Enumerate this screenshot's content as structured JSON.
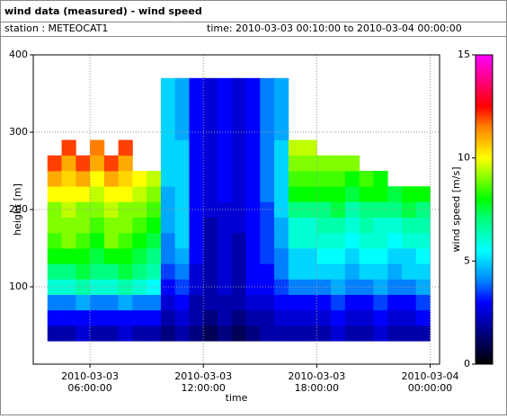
{
  "chart_data": {
    "type": "heatmap",
    "title": "wind data (measured) - wind speed",
    "station": "station : METEOCAT1",
    "period": "time: 2010-03-03 00:10:00 to 2010-03-04 00:00:00",
    "xlabel": "time",
    "ylabel": "height [m]",
    "colorbar_label": "wind speed [m/s]",
    "xlim": [
      "2010-03-03T03:00:00",
      "2010-03-04T00:30:00"
    ],
    "xticks": [
      {
        "value": "2010-03-03T06:00:00",
        "label": [
          "2010-03-03",
          "06:00:00"
        ]
      },
      {
        "value": "2010-03-03T12:00:00",
        "label": [
          "2010-03-03",
          "12:00:00"
        ]
      },
      {
        "value": "2010-03-03T18:00:00",
        "label": [
          "2010-03-03",
          "18:00:00"
        ]
      },
      {
        "value": "2010-03-04T00:00:00",
        "label": [
          "2010-03-04",
          "00:00:00"
        ]
      }
    ],
    "ylim": [
      0,
      400
    ],
    "yticks": [
      100,
      200,
      300,
      400
    ],
    "clim": [
      0,
      15
    ],
    "cticks": [
      0,
      5,
      10,
      15
    ],
    "grid": true,
    "colorscale": [
      [
        0,
        "#000000"
      ],
      [
        1.5,
        "#00007f"
      ],
      [
        3,
        "#0000ff"
      ],
      [
        4,
        "#0080ff"
      ],
      [
        5.5,
        "#00ffff"
      ],
      [
        7,
        "#00ff80"
      ],
      [
        8,
        "#00ff00"
      ],
      [
        10,
        "#ffff00"
      ],
      [
        11.5,
        "#ff8000"
      ],
      [
        12.5,
        "#ff0000"
      ],
      [
        15,
        "#ff00ff"
      ]
    ],
    "x": [
      "2010-03-03T03:45:00",
      "2010-03-03T04:30:00",
      "2010-03-03T05:15:00",
      "2010-03-03T06:00:00",
      "2010-03-03T06:45:00",
      "2010-03-03T07:30:00",
      "2010-03-03T08:15:00",
      "2010-03-03T09:00:00",
      "2010-03-03T09:45:00",
      "2010-03-03T10:30:00",
      "2010-03-03T11:15:00",
      "2010-03-03T12:00:00",
      "2010-03-03T12:45:00",
      "2010-03-03T13:30:00",
      "2010-03-03T14:15:00",
      "2010-03-03T15:00:00",
      "2010-03-03T15:45:00",
      "2010-03-03T16:30:00",
      "2010-03-03T17:15:00",
      "2010-03-03T18:00:00",
      "2010-03-03T18:45:00",
      "2010-03-03T19:30:00",
      "2010-03-03T20:15:00",
      "2010-03-03T21:00:00",
      "2010-03-03T21:45:00",
      "2010-03-03T22:30:00",
      "2010-03-03T23:15:00"
    ],
    "y": [
      40,
      60,
      80,
      100,
      120,
      140,
      160,
      180,
      200,
      220,
      240,
      260,
      280,
      300,
      320,
      340,
      360
    ],
    "z": [
      [
        2,
        2,
        2.5,
        2,
        2,
        2.5,
        2,
        2,
        1.5,
        2,
        1.5,
        1,
        1.5,
        1,
        1.5,
        2,
        2,
        2,
        2,
        2,
        2.5,
        2,
        2,
        2.5,
        2,
        2,
        2
      ],
      [
        3,
        3,
        3,
        3,
        3,
        3,
        3,
        3,
        2,
        2.5,
        2,
        1.5,
        2,
        1.5,
        2,
        2,
        2.5,
        2.5,
        2.5,
        2.5,
        3,
        2.5,
        2.5,
        3,
        2.5,
        2.5,
        3
      ],
      [
        4,
        4,
        4.5,
        4,
        4,
        4.5,
        4,
        4,
        2.5,
        3,
        2,
        2,
        2,
        2,
        2.5,
        2.5,
        3,
        3,
        3,
        3,
        3.5,
        3,
        3,
        3.5,
        3,
        3,
        3.5
      ],
      [
        6,
        6,
        6.5,
        6,
        6,
        6.5,
        6,
        5.5,
        3,
        3.5,
        2.5,
        2,
        2.5,
        2,
        3,
        3,
        3.5,
        4,
        4,
        4,
        4.5,
        4,
        4,
        4.5,
        4,
        4,
        4.5
      ],
      [
        7,
        7,
        7.5,
        7,
        7,
        7.5,
        7,
        6.5,
        3.5,
        4,
        2.5,
        2,
        2.5,
        2,
        3,
        3,
        4,
        5,
        5,
        5,
        5,
        4.5,
        5,
        5,
        4.5,
        5,
        5
      ],
      [
        8,
        8,
        8,
        7.5,
        8,
        8,
        7.5,
        7,
        4,
        4.5,
        3,
        2,
        2.5,
        2,
        3,
        3.5,
        4,
        5,
        5,
        5.5,
        5.5,
        5,
        5.5,
        5.5,
        5,
        5,
        5.5
      ],
      [
        8.5,
        9,
        8.5,
        8,
        9,
        8.5,
        8,
        7.5,
        4,
        5,
        3,
        2,
        2.5,
        2,
        3,
        3.5,
        4.5,
        6,
        6,
        6,
        6,
        5.5,
        6,
        6,
        5.5,
        6,
        6
      ],
      [
        9,
        9,
        9,
        8.5,
        9,
        9,
        8.5,
        8,
        4.5,
        5,
        3,
        2,
        2.5,
        2.5,
        3,
        3.5,
        4.5,
        6,
        6,
        6.5,
        6.5,
        6,
        6.5,
        6,
        6,
        6.5,
        6.5
      ],
      [
        9,
        9.5,
        9,
        9,
        9.5,
        9,
        9,
        8.5,
        4.5,
        5,
        3,
        2.5,
        2.5,
        2.5,
        3,
        3.5,
        5,
        7,
        7,
        7,
        7.5,
        6.5,
        7,
        7,
        7,
        7.5,
        7
      ],
      [
        10,
        10,
        10,
        9.5,
        10,
        10,
        9.5,
        9,
        4.5,
        5,
        3,
        2.5,
        3,
        2.5,
        3,
        4,
        5,
        8,
        8,
        8,
        8,
        7.5,
        8,
        8,
        7.5,
        8,
        8
      ],
      [
        11,
        10.5,
        11,
        10,
        11,
        10.5,
        10,
        9.5,
        5,
        5,
        3,
        2.5,
        3,
        2.5,
        3,
        4,
        5,
        8.5,
        8.5,
        8.5,
        8.5,
        8,
        8.5,
        8,
        null,
        null,
        null
      ],
      [
        12,
        11,
        12,
        11,
        12,
        11,
        null,
        null,
        5,
        5,
        3,
        2.5,
        3,
        2.5,
        3,
        4,
        5,
        9,
        9,
        9,
        9,
        9,
        null,
        null,
        null,
        null,
        null
      ],
      [
        null,
        12,
        null,
        11.5,
        null,
        12,
        null,
        null,
        5,
        5,
        3,
        2.5,
        3,
        2.5,
        3,
        4,
        5,
        9.5,
        9.5,
        null,
        null,
        null,
        null,
        null,
        null,
        null,
        null
      ],
      [
        null,
        null,
        null,
        null,
        null,
        null,
        null,
        null,
        5,
        4.5,
        3,
        2.5,
        3,
        2.5,
        3,
        4,
        4.5,
        null,
        null,
        null,
        null,
        null,
        null,
        null,
        null,
        null,
        null
      ],
      [
        null,
        null,
        null,
        null,
        null,
        null,
        null,
        null,
        5,
        4.5,
        3,
        2.5,
        3,
        2.5,
        3,
        4,
        4.5,
        null,
        null,
        null,
        null,
        null,
        null,
        null,
        null,
        null,
        null
      ],
      [
        null,
        null,
        null,
        null,
        null,
        null,
        null,
        null,
        5,
        4.5,
        3,
        2.5,
        3,
        2.5,
        3,
        4,
        4.5,
        null,
        null,
        null,
        null,
        null,
        null,
        null,
        null,
        null,
        null
      ],
      [
        null,
        null,
        null,
        null,
        null,
        null,
        null,
        null,
        5,
        4.5,
        3,
        2.5,
        3,
        2.5,
        3,
        4,
        4.5,
        null,
        null,
        null,
        null,
        null,
        null,
        null,
        null,
        null,
        null
      ]
    ]
  }
}
